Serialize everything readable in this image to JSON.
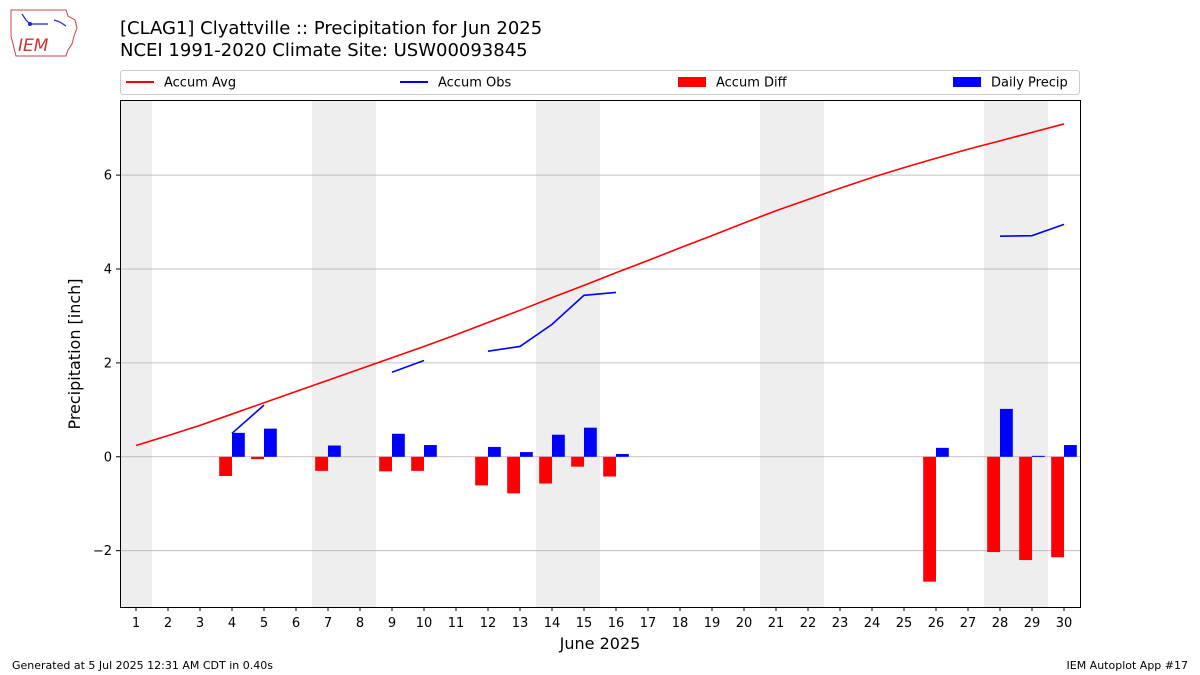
{
  "header": {
    "title_line1": "[CLAG1] Clyattville :: Precipitation for Jun 2025",
    "title_line2": "NCEI 1991-2020 Climate Site: USW00093845",
    "logo_text": "IEM"
  },
  "footer": {
    "generated": "Generated at 5 Jul 2025 12:31 AM CDT in 0.40s",
    "app": "IEM Autoplot App #17"
  },
  "colors": {
    "avg": "#ff0000",
    "obs": "#0000ff",
    "diff": "#ff0000",
    "daily": "#0000ff",
    "weekend_shade": "#eeeeee",
    "grid": "#b0b0b0"
  },
  "chart_data": {
    "type": "bar",
    "xlabel": "June 2025",
    "ylabel": "Precipitation [inch]",
    "ylim": [
      -3.2,
      7.6
    ],
    "yticks": [
      -2,
      0,
      2,
      4,
      6
    ],
    "ytick_labels": [
      "−2",
      "0",
      "2",
      "4",
      "6"
    ],
    "xlim": [
      0.5,
      30.5
    ],
    "x": [
      1,
      2,
      3,
      4,
      5,
      6,
      7,
      8,
      9,
      10,
      11,
      12,
      13,
      14,
      15,
      16,
      17,
      18,
      19,
      20,
      21,
      22,
      23,
      24,
      25,
      26,
      27,
      28,
      29,
      30
    ],
    "x_tick_labels": [
      "1",
      "2",
      "3",
      "4",
      "5",
      "6",
      "7",
      "8",
      "9",
      "10",
      "11",
      "12",
      "13",
      "14",
      "15",
      "16",
      "17",
      "18",
      "19",
      "20",
      "21",
      "22",
      "23",
      "24",
      "25",
      "26",
      "27",
      "28",
      "29",
      "30"
    ],
    "grid": "horizontal",
    "legend_position": "top",
    "shaded_weekend_days": [
      1,
      7,
      8,
      14,
      15,
      21,
      22,
      28,
      29
    ],
    "series": [
      {
        "name": "Accum Avg",
        "kind": "line",
        "values": [
          0.24,
          0.45,
          0.67,
          0.91,
          1.15,
          1.39,
          1.63,
          1.87,
          2.11,
          2.35,
          2.6,
          2.86,
          3.12,
          3.39,
          3.65,
          3.92,
          4.18,
          4.45,
          4.71,
          4.98,
          5.24,
          5.48,
          5.72,
          5.95,
          6.16,
          6.36,
          6.55,
          6.73,
          6.91,
          7.09
        ]
      },
      {
        "name": "Accum Obs",
        "kind": "line",
        "values": [
          null,
          null,
          null,
          0.5,
          1.1,
          null,
          null,
          null,
          1.8,
          2.05,
          null,
          2.25,
          2.35,
          2.82,
          3.44,
          3.5,
          null,
          null,
          null,
          null,
          null,
          null,
          null,
          null,
          null,
          null,
          null,
          4.7,
          4.71,
          4.95
        ]
      },
      {
        "name": "Accum Diff",
        "kind": "bar",
        "values": [
          null,
          null,
          null,
          -0.41,
          -0.05,
          null,
          -0.3,
          null,
          -0.31,
          -0.3,
          null,
          -0.61,
          -0.78,
          -0.57,
          -0.21,
          -0.42,
          null,
          null,
          null,
          null,
          null,
          null,
          null,
          null,
          null,
          -2.66,
          null,
          -2.03,
          -2.2,
          -2.14
        ]
      },
      {
        "name": "Daily Precip",
        "kind": "bar",
        "values": [
          null,
          null,
          null,
          0.51,
          0.6,
          null,
          0.24,
          null,
          0.49,
          0.25,
          null,
          0.21,
          0.1,
          0.47,
          0.62,
          0.06,
          null,
          null,
          null,
          null,
          null,
          null,
          null,
          null,
          null,
          0.19,
          null,
          1.02,
          0.02,
          0.25
        ]
      }
    ]
  }
}
